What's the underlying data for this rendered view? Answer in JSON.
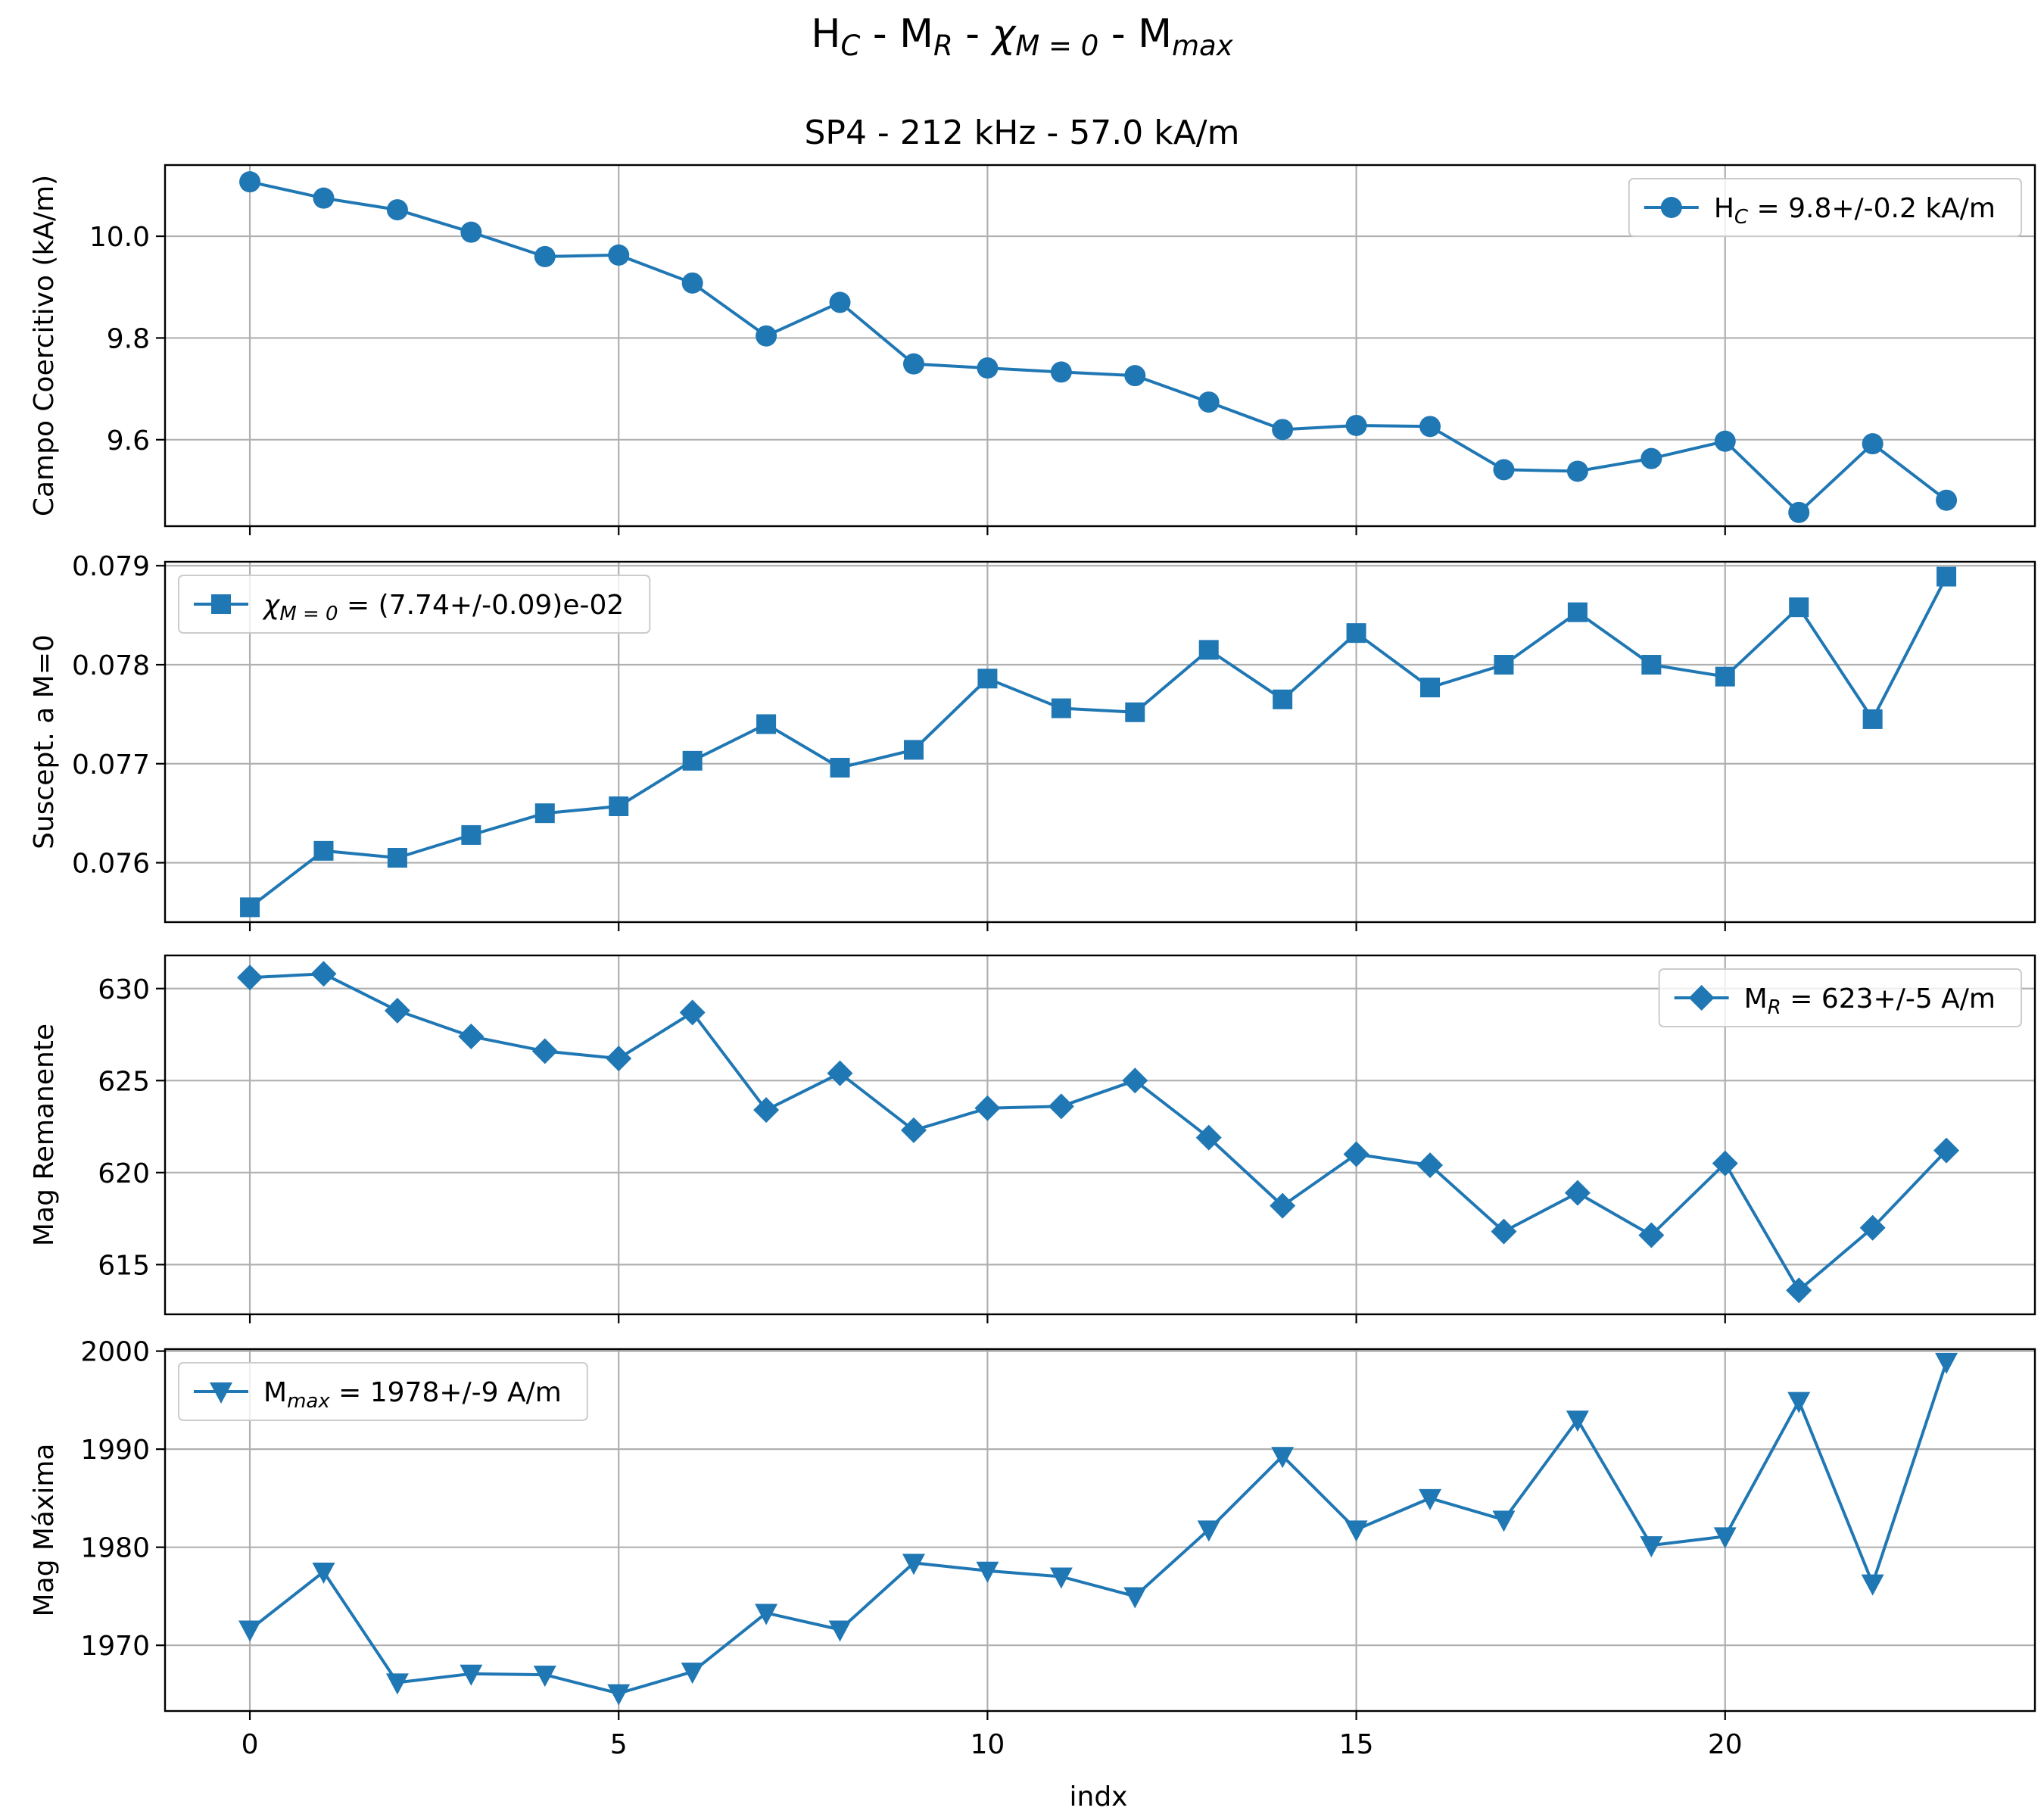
{
  "figure": {
    "title_segments": [
      {
        "t": "H"
      },
      {
        "t": "C",
        "sub": true
      },
      {
        "t": " - M"
      },
      {
        "t": "R",
        "sub": true
      },
      {
        "t": " - "
      },
      {
        "t": "χ",
        "italic": true
      },
      {
        "t": "M = 0",
        "sub": true
      },
      {
        "t": " - M"
      },
      {
        "t": "max",
        "sub": true
      }
    ],
    "subtitle": "SP4 - 212 kHz - 57.0 kA/m",
    "xlabel": "indx",
    "line_color": "#1f77b4"
  },
  "chart_data": [
    {
      "type": "line",
      "ylabel": "Campo Coercitivo (kA/m)",
      "marker": "circle",
      "x": [
        0,
        1,
        2,
        3,
        4,
        5,
        6,
        7,
        8,
        9,
        10,
        11,
        12,
        13,
        14,
        15,
        16,
        17,
        18,
        19,
        20,
        21,
        22,
        23
      ],
      "values": [
        10.107,
        10.075,
        10.052,
        10.008,
        9.96,
        9.963,
        9.908,
        9.804,
        9.87,
        9.749,
        9.741,
        9.733,
        9.726,
        9.674,
        9.62,
        9.628,
        9.626,
        9.541,
        9.538,
        9.563,
        9.597,
        9.457,
        9.592,
        9.481
      ],
      "ylim": [
        9.43,
        10.14
      ],
      "xlim": [
        -1.15,
        24.2
      ],
      "yticks": [
        9.6,
        9.8,
        10.0
      ],
      "ytick_labels": [
        "9.6",
        "9.8",
        "10.0"
      ],
      "legend": {
        "position": "top-right",
        "segments": [
          {
            "t": "H"
          },
          {
            "t": "C",
            "sub": true
          },
          {
            "t": " = 9.8+/-0.2 kA/m"
          }
        ]
      }
    },
    {
      "type": "line",
      "ylabel": "Suscept. a M=0",
      "marker": "square",
      "x": [
        0,
        1,
        2,
        3,
        4,
        5,
        6,
        7,
        8,
        9,
        10,
        11,
        12,
        13,
        14,
        15,
        16,
        17,
        18,
        19,
        20,
        21,
        22,
        23
      ],
      "values": [
        0.07555,
        0.07612,
        0.07605,
        0.07628,
        0.0765,
        0.07657,
        0.07703,
        0.0774,
        0.07696,
        0.07714,
        0.07786,
        0.07756,
        0.07752,
        0.07815,
        0.07765,
        0.07832,
        0.07777,
        0.078,
        0.07853,
        0.078,
        0.07788,
        0.07858,
        0.07745,
        0.07889
      ],
      "ylim": [
        0.0754,
        0.07904
      ],
      "xlim": [
        -1.15,
        24.2
      ],
      "yticks": [
        0.076,
        0.077,
        0.078,
        0.079
      ],
      "ytick_labels": [
        "0.076",
        "0.077",
        "0.078",
        "0.079"
      ],
      "legend": {
        "position": "top-left",
        "segments": [
          {
            "t": "χ",
            "italic": true
          },
          {
            "t": "M = 0",
            "sub": true
          },
          {
            "t": " = (7.74+/-0.09)e-02"
          }
        ]
      }
    },
    {
      "type": "line",
      "ylabel": "Mag Remanente",
      "marker": "diamond",
      "x": [
        0,
        1,
        2,
        3,
        4,
        5,
        6,
        7,
        8,
        9,
        10,
        11,
        12,
        13,
        14,
        15,
        16,
        17,
        18,
        19,
        20,
        21,
        22,
        23
      ],
      "values": [
        630.6,
        630.8,
        628.8,
        627.4,
        626.6,
        626.2,
        628.7,
        623.4,
        625.4,
        622.3,
        623.5,
        623.6,
        625.0,
        621.9,
        618.2,
        621.0,
        620.4,
        616.8,
        618.9,
        616.6,
        620.5,
        613.6,
        617.0,
        621.2
      ],
      "ylim": [
        612.3,
        631.8
      ],
      "xlim": [
        -1.15,
        24.2
      ],
      "yticks": [
        615,
        620,
        625,
        630
      ],
      "ytick_labels": [
        "615",
        "620",
        "625",
        "630"
      ],
      "legend": {
        "position": "top-right",
        "segments": [
          {
            "t": "M"
          },
          {
            "t": "R",
            "sub": true
          },
          {
            "t": " = 623+/-5 A/m"
          }
        ]
      }
    },
    {
      "type": "line",
      "ylabel": "Mag Máxima",
      "marker": "triangle-down",
      "x": [
        0,
        1,
        2,
        3,
        4,
        5,
        6,
        7,
        8,
        9,
        10,
        11,
        12,
        13,
        14,
        15,
        16,
        17,
        18,
        19,
        20,
        21,
        22,
        23
      ],
      "values": [
        1971.6,
        1977.5,
        1966.2,
        1967.1,
        1967.0,
        1965.1,
        1967.3,
        1973.3,
        1971.6,
        1978.4,
        1977.6,
        1977.0,
        1975.0,
        1981.8,
        1989.3,
        1981.8,
        1985.0,
        1982.8,
        1993.0,
        1980.2,
        1981.1,
        1994.9,
        1976.3,
        1998.9
      ],
      "ylim": [
        1963.3,
        2000.2
      ],
      "xlim": [
        -1.15,
        24.2
      ],
      "yticks": [
        1970,
        1980,
        1990,
        2000
      ],
      "ytick_labels": [
        "1970",
        "1980",
        "1990",
        "2000"
      ],
      "xticks": [
        0,
        5,
        10,
        15,
        20
      ],
      "xtick_labels": [
        "0",
        "5",
        "10",
        "15",
        "20"
      ],
      "legend": {
        "position": "top-left",
        "segments": [
          {
            "t": "M"
          },
          {
            "t": "max",
            "sub": true
          },
          {
            "t": " = 1978+/-9 A/m"
          }
        ]
      }
    }
  ]
}
